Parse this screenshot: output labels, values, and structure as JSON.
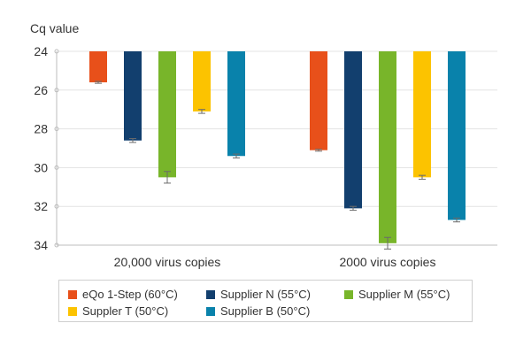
{
  "chart_data": {
    "type": "bar",
    "ylabel": "Cq value",
    "ylim": [
      24,
      34
    ],
    "y_inverted": true,
    "yticks": [
      24,
      26,
      28,
      30,
      32,
      34
    ],
    "grid": "horizontal",
    "legend_position": "bottom",
    "categories": [
      "20,000 virus copies",
      "2000 virus copies"
    ],
    "series": [
      {
        "name": "eQo 1-Step (60°C)",
        "color": "#e8501a",
        "values": [
          25.6,
          29.1
        ],
        "errors": [
          0.05,
          0.05
        ]
      },
      {
        "name": "Supplier N (55°C)",
        "color": "#123f6e",
        "values": [
          28.6,
          32.1
        ],
        "errors": [
          0.1,
          0.1
        ]
      },
      {
        "name": "Supplier M (55°C)",
        "color": "#78b52a",
        "values": [
          30.5,
          33.9
        ],
        "errors": [
          0.3,
          0.3
        ]
      },
      {
        "name": "Suppler T (50°C)",
        "color": "#fcc300",
        "values": [
          27.1,
          30.5
        ],
        "errors": [
          0.1,
          0.1
        ]
      },
      {
        "name": "Supplier B (50°C)",
        "color": "#0982ab",
        "values": [
          29.4,
          32.7
        ],
        "errors": [
          0.1,
          0.1
        ]
      }
    ]
  }
}
